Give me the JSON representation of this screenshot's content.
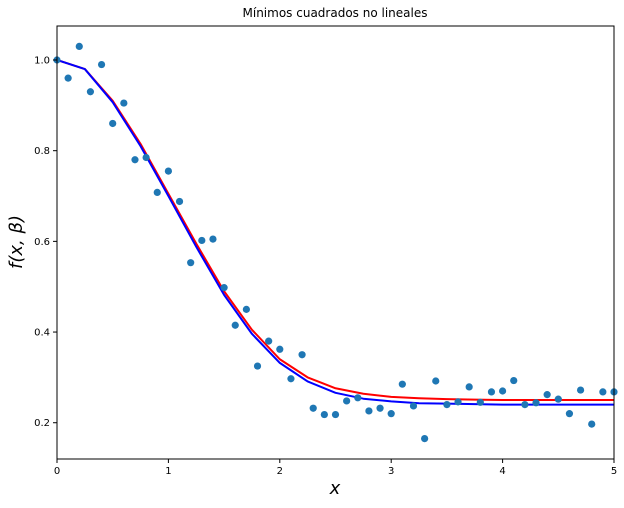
{
  "chart_data": {
    "type": "scatter",
    "title": "Mínimos cuadrados no lineales",
    "xlabel": "x",
    "ylabel": "f(x, β)",
    "xlim": [
      0,
      5
    ],
    "ylim": [
      0.12,
      1.075
    ],
    "x_ticks": [
      "0",
      "1",
      "2",
      "3",
      "4",
      "5"
    ],
    "y_ticks": [
      "0.2",
      "0.4",
      "0.6",
      "0.8",
      "1.0"
    ],
    "x_tick_values": [
      0,
      1,
      2,
      3,
      4,
      5
    ],
    "y_tick_values": [
      0.2,
      0.4,
      0.6,
      0.8,
      1.0
    ],
    "grid": false,
    "legend": false,
    "colors": {
      "points": "#1f77b4",
      "fit_red": "#ff0000",
      "fit_blue": "#0000ff"
    },
    "points": {
      "x": [
        0.0,
        0.1,
        0.2,
        0.3,
        0.4,
        0.5,
        0.6,
        0.7,
        0.8,
        0.9,
        1.0,
        1.1,
        1.2,
        1.3,
        1.4,
        1.5,
        1.6,
        1.7,
        1.8,
        1.9,
        2.0,
        2.1,
        2.2,
        2.3,
        2.4,
        2.5,
        2.6,
        2.7,
        2.8,
        2.9,
        3.0,
        3.1,
        3.2,
        3.3,
        3.4,
        3.5,
        3.6,
        3.7,
        3.8,
        3.9,
        4.0,
        4.1,
        4.2,
        4.3,
        4.4,
        4.5,
        4.6,
        4.7,
        4.8,
        4.9,
        5.0
      ],
      "y": [
        1.0,
        0.96,
        1.03,
        0.93,
        0.99,
        0.86,
        0.905,
        0.78,
        0.785,
        0.708,
        0.755,
        0.688,
        0.553,
        0.602,
        0.605,
        0.498,
        0.415,
        0.45,
        0.325,
        0.38,
        0.362,
        0.297,
        0.35,
        0.232,
        0.218,
        0.218,
        0.248,
        0.255,
        0.226,
        0.232,
        0.22,
        0.285,
        0.237,
        0.165,
        0.292,
        0.24,
        0.246,
        0.279,
        0.245,
        0.268,
        0.27,
        0.293,
        0.24,
        0.244,
        0.262,
        0.252,
        0.22,
        0.272,
        0.197,
        0.268,
        0.268
      ]
    },
    "series": [
      {
        "color": "#ff0000",
        "x": [
          0.0,
          0.25,
          0.5,
          0.75,
          1.0,
          1.25,
          1.5,
          1.75,
          2.0,
          2.25,
          2.5,
          2.75,
          3.0,
          3.25,
          3.5,
          3.75,
          4.0,
          4.25,
          4.5,
          4.75,
          5.0
        ],
        "y": [
          1.0,
          0.98,
          0.91,
          0.815,
          0.705,
          0.595,
          0.49,
          0.405,
          0.34,
          0.3,
          0.276,
          0.264,
          0.257,
          0.254,
          0.252,
          0.251,
          0.25,
          0.25,
          0.25,
          0.25,
          0.25
        ]
      },
      {
        "color": "#0000ff",
        "x": [
          0.0,
          0.25,
          0.5,
          0.75,
          1.0,
          1.25,
          1.5,
          1.75,
          2.0,
          2.25,
          2.5,
          2.75,
          3.0,
          3.25,
          3.5,
          3.75,
          4.0,
          4.25,
          4.5,
          4.75,
          5.0
        ],
        "y": [
          1.0,
          0.98,
          0.907,
          0.81,
          0.7,
          0.588,
          0.482,
          0.396,
          0.332,
          0.291,
          0.266,
          0.253,
          0.247,
          0.243,
          0.242,
          0.241,
          0.24,
          0.24,
          0.24,
          0.24,
          0.24
        ]
      }
    ]
  }
}
